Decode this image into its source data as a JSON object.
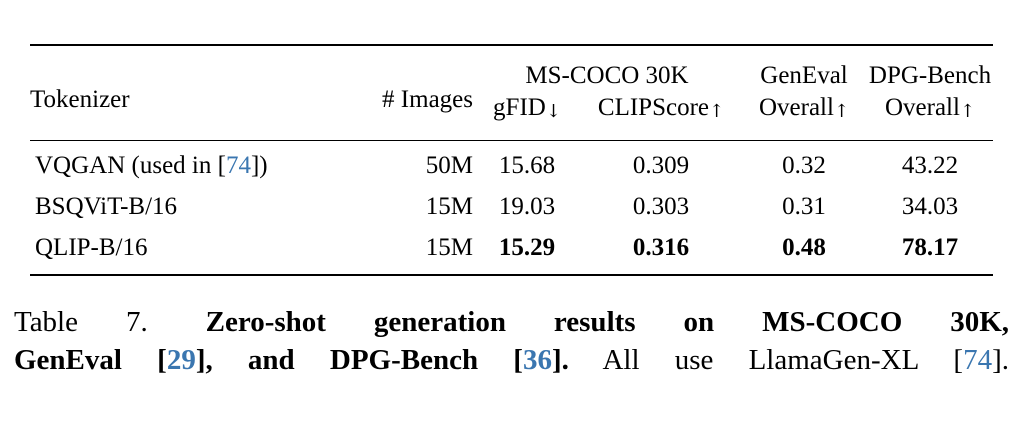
{
  "page": {
    "background": "#ffffff"
  },
  "colors": {
    "text": "#000000",
    "link_blue": "#3a76b0",
    "rule": "#000000"
  },
  "table": {
    "header": {
      "tokenizer": "Tokenizer",
      "images": "# Images",
      "mscoco_group": "MS-COCO 30K",
      "gfid_label": "gFID",
      "clipscore_label": "CLIPScore",
      "geneval_group": "GenEval",
      "geneval_sub_label": "Overall",
      "dpgbench_group": "DPG-Bench",
      "dpgbench_sub_label": "Overall",
      "down_arrow": "↓",
      "up_arrow": "↑"
    },
    "rows": [
      {
        "tokenizer_prefix": "VQGAN (used in [",
        "tokenizer_cite": "74",
        "tokenizer_suffix": "])",
        "images": "50M",
        "gfid": "15.68",
        "clipscore": "0.309",
        "geneval_overall": "0.32",
        "dpg_overall": "43.22"
      },
      {
        "tokenizer": "BSQViT-B/16",
        "images": "15M",
        "gfid": "19.03",
        "clipscore": "0.303",
        "geneval_overall": "0.31",
        "dpg_overall": "34.03"
      },
      {
        "tokenizer": "QLIP-B/16",
        "images": "15M",
        "gfid": "15.29",
        "clipscore": "0.316",
        "geneval_overall": "0.48",
        "dpg_overall": "78.17"
      }
    ]
  },
  "caption": {
    "label": "Table 7.",
    "bold_1": "Zero-shot generation results on MS-COCO 30K,",
    "bold_2": "GenEval [",
    "cite_29": "29",
    "bold_3": "], and DPG-Bench [",
    "cite_36": "36",
    "bold_4": "].",
    "regular_1": "All use LlamaGen-XL [",
    "cite_74": "74",
    "regular_2": "]."
  }
}
